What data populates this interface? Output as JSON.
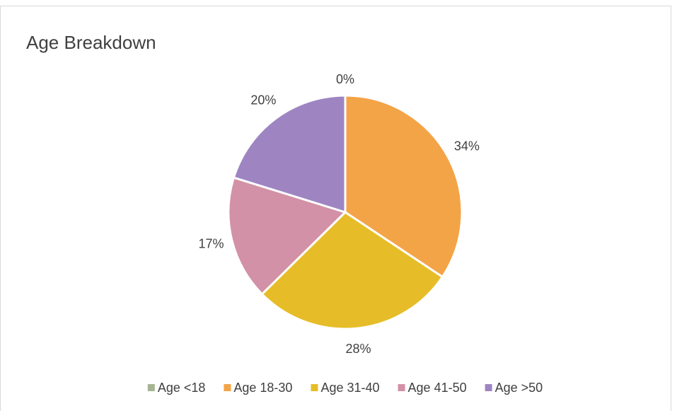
{
  "chart_data": {
    "type": "pie",
    "title": "Age Breakdown",
    "categories": [
      "Age <18",
      "Age 18-30",
      "Age 31-40",
      "Age 41-50",
      "Age >50"
    ],
    "values": [
      0,
      34,
      28,
      17,
      20
    ],
    "value_labels": [
      "0%",
      "34%",
      "28%",
      "17%",
      "20%"
    ],
    "colors": [
      "#a5b592",
      "#f3a447",
      "#e6bd28",
      "#d291a6",
      "#9e85c2"
    ],
    "legend": "bottom"
  }
}
